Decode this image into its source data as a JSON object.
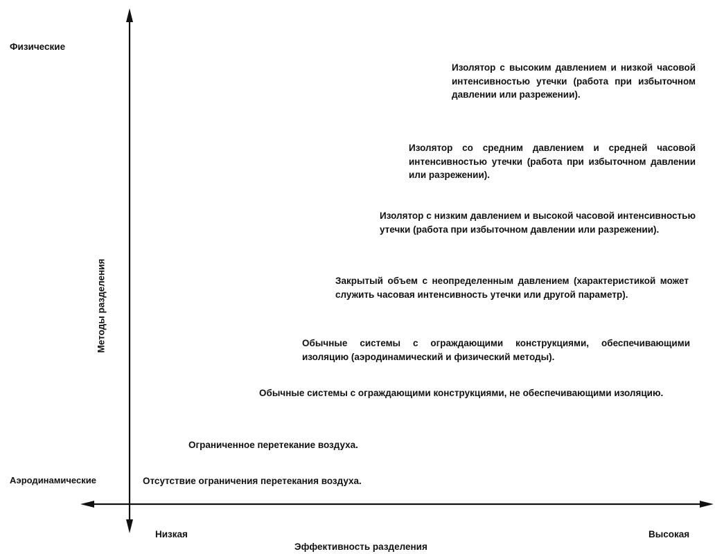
{
  "diagram": {
    "y_axis": {
      "label": "Методы разделения",
      "top_label": "Физические",
      "bottom_label": "Аэродинамические"
    },
    "x_axis": {
      "label": "Эффективность разделения",
      "left_label": "Низкая",
      "right_label": "Высокая"
    },
    "levels": [
      "Отсутствие ограничения перетекания воздуха.",
      "Ограниченное перетекание воздуха.",
      "Обычные системы с ограждающими конструкциями, не обеспечивающими изоляцию.",
      "Обычные системы с ограждающими конструкциями, обеспечивающими изоляцию (аэродинамический и физический методы).",
      "Закрытый объем с неопределенным давлением (характеристикой может служить часовая интенсивность утечки или другой параметр).",
      "Изолятор с низким давлением и высокой часовой интенсивностью утечки (работа при избыточном давлении или разрежении).",
      "Изолятор со средним давлением и средней часовой интенсивностью утечки (работа при избыточном давлении или разрежении).",
      "Изолятор с высоким давлением и низкой часовой интенсивностью утечки (работа при избыточном давлении или разрежении)."
    ]
  }
}
